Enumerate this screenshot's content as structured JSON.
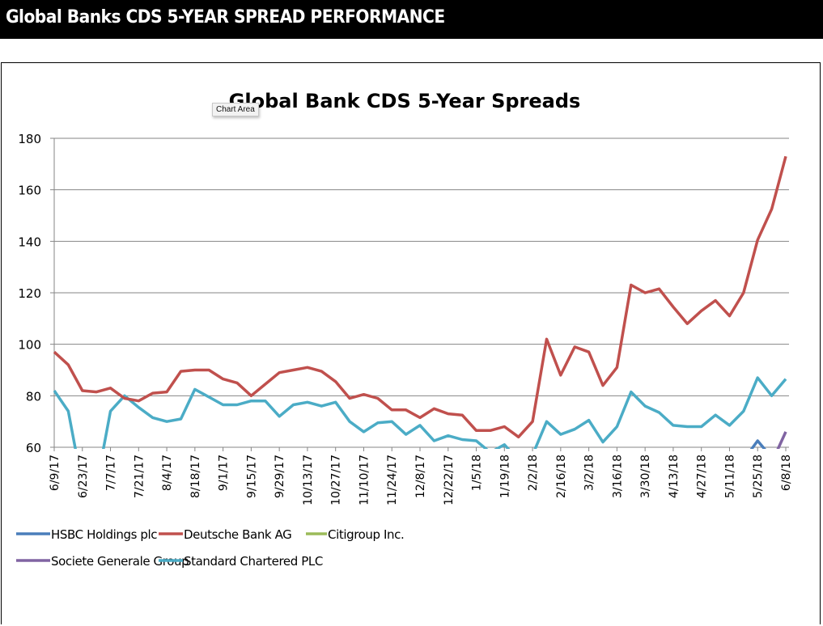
{
  "header": {
    "title": "Global Banks CDS 5-YEAR SPREAD PERFORMANCE"
  },
  "tooltip": {
    "text": "Chart Area"
  },
  "chart_data": {
    "type": "line",
    "title": "Global Bank CDS 5-Year Spreads",
    "xlabel": "",
    "ylabel": "",
    "ylim": [
      60,
      180
    ],
    "yticks": [
      60,
      80,
      100,
      120,
      140,
      160,
      180
    ],
    "grid": true,
    "legend_position": "bottom",
    "x": [
      "6/9/17",
      "6/16/17",
      "6/23/17",
      "6/30/17",
      "7/7/17",
      "7/14/17",
      "7/21/17",
      "7/28/17",
      "8/4/17",
      "8/11/17",
      "8/18/17",
      "8/25/17",
      "9/1/17",
      "9/8/17",
      "9/15/17",
      "9/22/17",
      "9/29/17",
      "10/6/17",
      "10/13/17",
      "10/20/17",
      "10/27/17",
      "11/3/17",
      "11/10/17",
      "11/17/17",
      "11/24/17",
      "12/1/17",
      "12/8/17",
      "12/15/17",
      "12/22/17",
      "12/29/17",
      "1/5/18",
      "1/12/18",
      "1/19/18",
      "1/26/18",
      "2/2/18",
      "2/9/18",
      "2/16/18",
      "2/23/18",
      "3/2/18",
      "3/9/18",
      "3/16/18",
      "3/23/18",
      "3/30/18",
      "4/6/18",
      "4/13/18",
      "4/20/18",
      "4/27/18",
      "5/4/18",
      "5/11/18",
      "5/18/18",
      "5/25/18",
      "6/1/18",
      "6/8/18"
    ],
    "tick_labels": [
      "6/9/17",
      "6/23/17",
      "7/7/17",
      "7/21/17",
      "8/4/17",
      "8/18/17",
      "9/1/17",
      "9/15/17",
      "9/29/17",
      "10/13/17",
      "10/27/17",
      "11/10/17",
      "11/24/17",
      "12/8/17",
      "12/22/17",
      "1/5/18",
      "1/19/18",
      "2/2/18",
      "2/16/18",
      "3/2/18",
      "3/16/18",
      "3/30/18",
      "4/13/18",
      "4/27/18",
      "5/11/18",
      "5/25/18",
      "6/8/18"
    ],
    "series": [
      {
        "name": "HSBC Holdings plc",
        "color": "#4a7ebb",
        "values": [
          null,
          null,
          null,
          null,
          null,
          null,
          null,
          null,
          null,
          null,
          null,
          null,
          null,
          null,
          null,
          null,
          null,
          null,
          null,
          null,
          null,
          null,
          null,
          null,
          null,
          null,
          null,
          null,
          null,
          null,
          null,
          null,
          null,
          null,
          null,
          null,
          null,
          null,
          null,
          null,
          null,
          null,
          null,
          null,
          null,
          null,
          null,
          null,
          null,
          55,
          62.5,
          56,
          null
        ]
      },
      {
        "name": "Deutsche Bank AG",
        "color": "#c0504d",
        "values": [
          97,
          92,
          82,
          81.5,
          83,
          79,
          78,
          81,
          81.5,
          89.5,
          90,
          90,
          86.5,
          85,
          80,
          84.5,
          89,
          90,
          91,
          89.5,
          85.5,
          79,
          80.5,
          79,
          74.5,
          74.5,
          71.5,
          75,
          73,
          72.5,
          66.5,
          66.5,
          68,
          64,
          70,
          102,
          88,
          99,
          97,
          84,
          91,
          123,
          120,
          121.5,
          114.5,
          108,
          113,
          117,
          111,
          120,
          140.5,
          152.5,
          173
        ]
      },
      {
        "name": "Citigroup Inc.",
        "color": "#9bbb59",
        "values": [
          null,
          null,
          null,
          null,
          null,
          null,
          null,
          null,
          null,
          null,
          null,
          null,
          null,
          null,
          null,
          null,
          null,
          null,
          null,
          null,
          null,
          null,
          null,
          null,
          null,
          null,
          null,
          null,
          null,
          null,
          null,
          null,
          null,
          null,
          null,
          null,
          null,
          null,
          null,
          null,
          null,
          null,
          null,
          null,
          null,
          null,
          null,
          null,
          null,
          null,
          null,
          null,
          null
        ]
      },
      {
        "name": "Societe Generale Group",
        "color": "#8064a2",
        "values": [
          null,
          null,
          null,
          null,
          null,
          null,
          null,
          null,
          null,
          null,
          null,
          null,
          null,
          null,
          null,
          null,
          null,
          null,
          null,
          null,
          null,
          null,
          null,
          null,
          null,
          null,
          null,
          null,
          null,
          null,
          null,
          null,
          null,
          null,
          null,
          null,
          null,
          null,
          null,
          null,
          null,
          null,
          null,
          null,
          null,
          null,
          null,
          null,
          null,
          null,
          null,
          54,
          66
        ]
      },
      {
        "name": "Standard Chartered PLC",
        "color": "#4bacc6",
        "values": [
          82,
          74,
          45,
          45,
          74,
          80,
          75.5,
          71.5,
          70,
          71,
          82.5,
          79.5,
          76.5,
          76.5,
          78,
          78,
          72,
          76.5,
          77.5,
          76,
          77.5,
          70,
          66,
          69.5,
          70,
          65,
          68.5,
          62.5,
          64.5,
          63,
          62.5,
          58,
          61,
          55,
          57,
          70,
          65,
          67,
          70.5,
          62,
          68,
          81.5,
          76,
          73.5,
          68.5,
          68,
          68,
          72.5,
          68.5,
          74,
          87,
          80,
          86.5
        ]
      }
    ]
  }
}
